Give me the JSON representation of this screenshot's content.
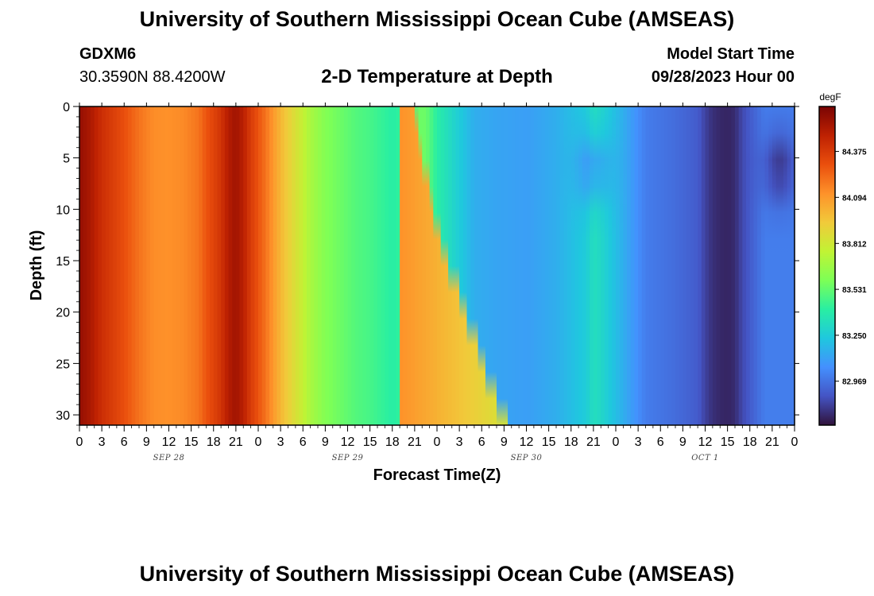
{
  "page_title": "University of Southern Mississippi Ocean Cube (AMSEAS)",
  "footer_title": "University of Southern Mississippi Ocean Cube (AMSEAS)",
  "station": {
    "id": "GDXM6",
    "coords": "30.3590N  88.4200W"
  },
  "model_start": {
    "label": "Model Start Time",
    "value": "09/28/2023 Hour 00"
  },
  "chart_data": {
    "type": "heatmap",
    "title": "2-D Temperature at Depth",
    "xlabel": "Forecast Time(Z)",
    "ylabel": "Depth (ft)",
    "x_unit": "forecast hour from model start",
    "x_range": [
      0,
      96
    ],
    "y_range": [
      0,
      31
    ],
    "y_inverted": true,
    "x_tick_labels": [
      "0",
      "3",
      "6",
      "9",
      "12",
      "15",
      "18",
      "21",
      "0",
      "3",
      "6",
      "9",
      "12",
      "15",
      "18",
      "21",
      "0",
      "3",
      "6",
      "9",
      "12",
      "15",
      "18",
      "21",
      "0",
      "3",
      "6",
      "9",
      "12",
      "15",
      "18",
      "21",
      "0"
    ],
    "x_tick_hours": [
      0,
      3,
      6,
      9,
      12,
      15,
      18,
      21,
      24,
      27,
      30,
      33,
      36,
      39,
      42,
      45,
      48,
      51,
      54,
      57,
      60,
      63,
      66,
      69,
      72,
      75,
      78,
      81,
      84,
      87,
      90,
      93,
      96
    ],
    "date_labels": [
      {
        "text": "SEP 28",
        "hour": 12
      },
      {
        "text": "SEP 29",
        "hour": 36
      },
      {
        "text": "SEP 30",
        "hour": 60
      },
      {
        "text": "OCT 1",
        "hour": 84
      }
    ],
    "y_tick_values": [
      0,
      5,
      10,
      15,
      20,
      25,
      30
    ],
    "colorbar": {
      "unit": "degF",
      "min": 82.7,
      "max": 84.65,
      "tick_values": [
        84.375,
        84.094,
        83.812,
        83.531,
        83.25,
        82.969
      ],
      "tick_labels": [
        "84.375",
        "84.094",
        "83.812",
        "83.531",
        "83.250",
        "82.969"
      ],
      "colors": [
        "#30123b",
        "#4454c4",
        "#4490fe",
        "#1fc8de",
        "#29efa2",
        "#7dff56",
        "#c1f334",
        "#f1ca3a",
        "#fe922a",
        "#ea4f0d",
        "#be2102",
        "#7a0403"
      ]
    },
    "surface_temperature_series": {
      "hours": [
        0,
        1.5,
        3,
        6,
        8,
        10,
        12,
        14,
        16,
        17,
        19,
        20,
        21,
        22,
        23,
        25,
        27,
        29,
        31,
        33,
        35,
        37,
        39,
        42,
        45,
        46,
        48,
        50,
        53,
        56,
        60,
        64,
        68,
        69,
        70,
        72,
        74,
        76,
        80,
        83,
        84,
        85,
        86,
        87,
        88,
        89,
        90,
        91,
        92,
        93,
        94,
        96
      ],
      "values": [
        84.58,
        84.52,
        84.42,
        84.3,
        84.2,
        84.13,
        84.12,
        84.14,
        84.2,
        84.28,
        84.4,
        84.5,
        84.55,
        84.48,
        84.37,
        84.2,
        84.0,
        83.85,
        83.7,
        83.6,
        83.55,
        83.5,
        83.47,
        83.4,
        83.47,
        83.6,
        83.4,
        83.3,
        83.15,
        83.12,
        83.1,
        83.15,
        83.25,
        83.33,
        83.3,
        83.2,
        83.1,
        83.0,
        82.95,
        82.9,
        82.83,
        82.78,
        82.76,
        82.75,
        82.77,
        82.85,
        82.9,
        82.95,
        83.0,
        83.0,
        83.0,
        83.0
      ]
    },
    "features": [
      {
        "desc": "warm tongue extending deeper with time",
        "x_at_top": 45,
        "x_at_bottom": 57.5
      },
      {
        "desc": "cooler cell near 6 ft",
        "center_hour": 69,
        "center_depth": 6
      },
      {
        "desc": "cooler cell near 6 ft",
        "center_hour": 94,
        "center_depth": 6
      }
    ]
  }
}
